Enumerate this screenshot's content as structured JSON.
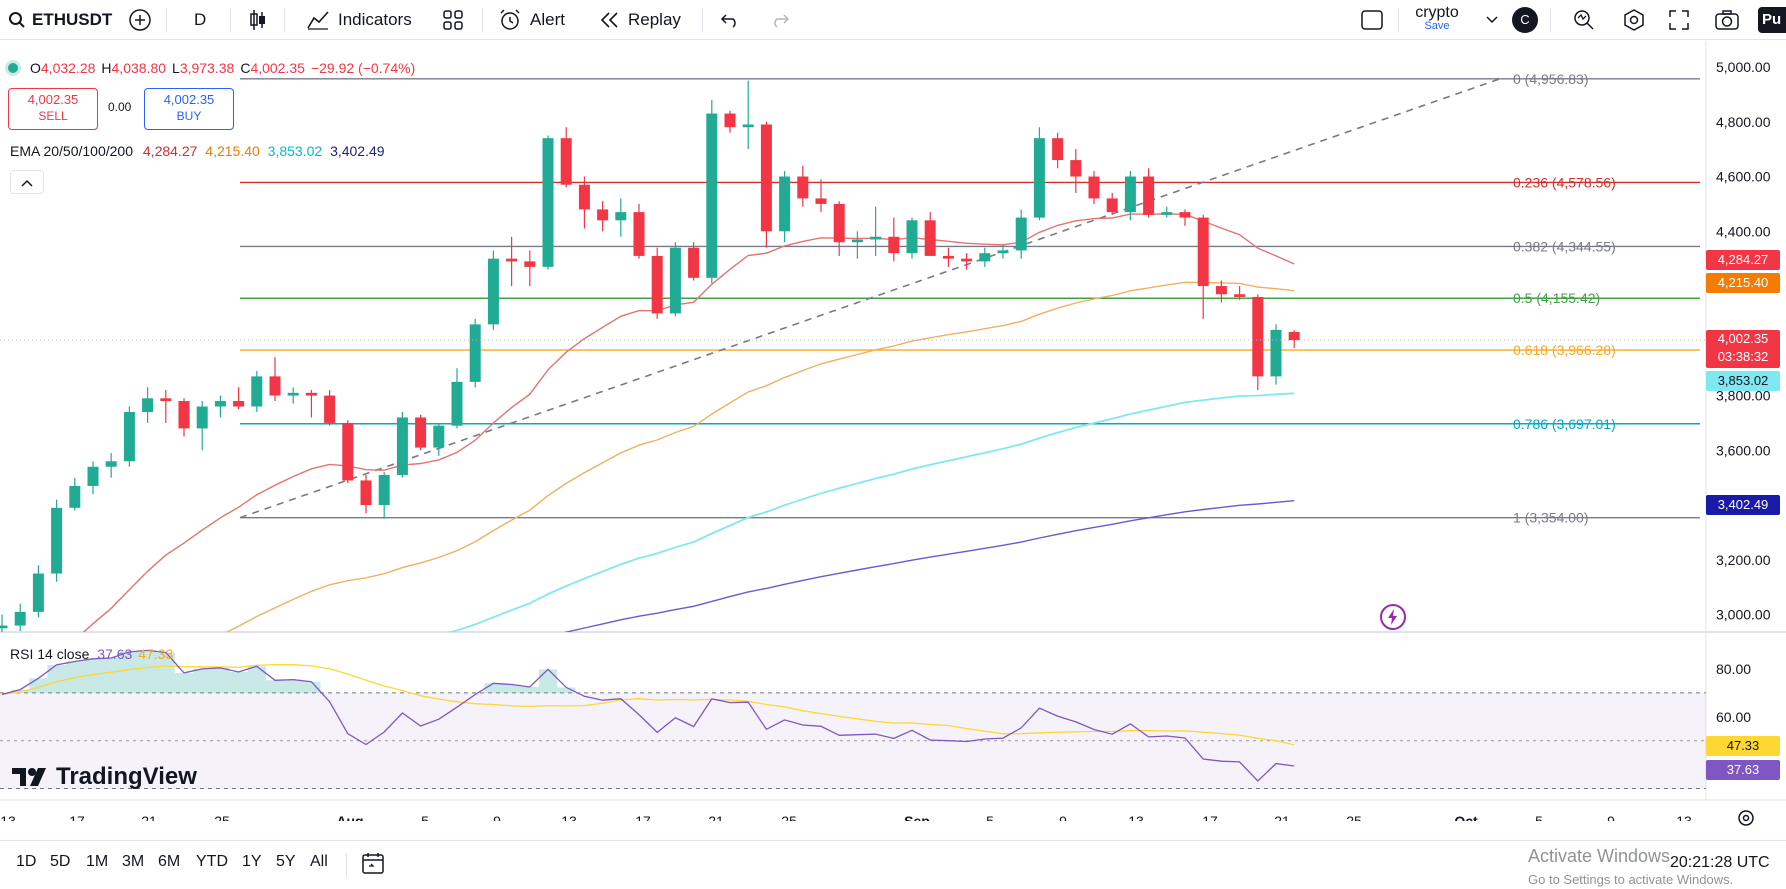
{
  "toolbar": {
    "symbol": "ETHUSDT",
    "interval": "D",
    "indicators": "Indicators",
    "alert": "Alert",
    "replay": "Replay",
    "layout_name": "crypto",
    "layout_status": "Save",
    "avatar_letter": "C",
    "publish_cut": "Pu"
  },
  "ohlc": {
    "o_label": "O",
    "o": "4,032.28",
    "h_label": "H",
    "h": "4,038.80",
    "l_label": "L",
    "l": "3,973.38",
    "c_label": "C",
    "c": "4,002.35",
    "change": "−29.92 (−0.74%)"
  },
  "trade": {
    "sell_price": "4,002.35",
    "sell_label": "SELL",
    "spread": "0.00",
    "buy_price": "4,002.35",
    "buy_label": "BUY"
  },
  "ema_legend": {
    "name": "EMA 20/50/100/200",
    "v20": "4,284.27",
    "v50": "4,215.40",
    "v100": "3,853.02",
    "v200": "3,402.49"
  },
  "rsi_legend": {
    "name": "RSI 14 close",
    "rsi": "37.63",
    "ma": "47.33"
  },
  "colors": {
    "up": "#22ab94",
    "down": "#f23645",
    "ema20": "#e57373",
    "ema50": "#f0b060",
    "ema100": "#80e8f0",
    "ema200": "#6a5acd",
    "rsi": "#7e57c2",
    "rsi_ma": "#fdd835"
  },
  "price_axis": [
    "5,000.00",
    "4,800.00",
    "4,600.00",
    "4,400.00",
    "4,200.00",
    "4,000.00",
    "3,800.00",
    "3,600.00",
    "3,400.00",
    "3,200.00",
    "3,000.00"
  ],
  "rsi_axis": [
    "80.00",
    "60.00"
  ],
  "price_tags": {
    "ema20": "4,284.27",
    "ema50": "4,215.40",
    "last": "4,002.35",
    "countdown": "03:38:32",
    "ema100": "3,853.02",
    "ema200": "3,402.49",
    "rsi_ma": "47.33",
    "rsi": "37.63"
  },
  "fib_levels": [
    {
      "label": "0 (4,956.83)",
      "price": 4956.83,
      "color": "#787b86"
    },
    {
      "label": "0.236 (4,578.56)",
      "price": 4578.56,
      "color": "#d32f2f"
    },
    {
      "label": "0.382 (4,344.55)",
      "price": 4344.55,
      "color": "#787b86"
    },
    {
      "label": "0.5 (4,155.42)",
      "price": 4155.42,
      "color": "#43a047"
    },
    {
      "label": "0.618 (3,966.28)",
      "price": 3966.28,
      "color": "#f9a825"
    },
    {
      "label": "0.786 (3,697.01)",
      "price": 3697.01,
      "color": "#00acc1"
    },
    {
      "label": "1 (3,354.00)",
      "price": 3354.0,
      "color": "#787b86"
    }
  ],
  "time_axis": [
    "13",
    "17",
    "21",
    "25",
    "Aug",
    "5",
    "9",
    "13",
    "17",
    "21",
    "25",
    "Sep",
    "5",
    "9",
    "13",
    "17",
    "21",
    "25",
    "Oct",
    "5",
    "9",
    "13"
  ],
  "timeframes": [
    "1D",
    "5D",
    "1M",
    "3M",
    "6M",
    "YTD",
    "1Y",
    "5Y",
    "All"
  ],
  "clock": "20:21:28 UTC",
  "brand": "TradingView",
  "activate": {
    "title": "Activate Windows",
    "subtitle": "Go to Settings to activate Windows."
  },
  "chart_data": {
    "type": "candlestick",
    "symbol": "ETHUSDT",
    "interval": "1D",
    "note_x": "candles are daily, from ~Jul 12 to Sep 26",
    "candles": [
      [
        2950,
        3000,
        2900,
        2960
      ],
      [
        2960,
        3040,
        2940,
        3010
      ],
      [
        3010,
        3180,
        2990,
        3150
      ],
      [
        3150,
        3420,
        3120,
        3390
      ],
      [
        3390,
        3500,
        3380,
        3470
      ],
      [
        3470,
        3560,
        3440,
        3540
      ],
      [
        3540,
        3590,
        3500,
        3560
      ],
      [
        3560,
        3760,
        3540,
        3740
      ],
      [
        3740,
        3830,
        3700,
        3790
      ],
      [
        3790,
        3820,
        3700,
        3780
      ],
      [
        3780,
        3790,
        3650,
        3680
      ],
      [
        3680,
        3780,
        3600,
        3760
      ],
      [
        3760,
        3800,
        3720,
        3780
      ],
      [
        3780,
        3830,
        3750,
        3760
      ],
      [
        3760,
        3890,
        3740,
        3870
      ],
      [
        3870,
        3940,
        3780,
        3800
      ],
      [
        3800,
        3830,
        3770,
        3810
      ],
      [
        3810,
        3820,
        3720,
        3800
      ],
      [
        3800,
        3820,
        3690,
        3700
      ],
      [
        3700,
        3710,
        3480,
        3490
      ],
      [
        3490,
        3510,
        3370,
        3400
      ],
      [
        3400,
        3520,
        3350,
        3510
      ],
      [
        3510,
        3740,
        3500,
        3720
      ],
      [
        3720,
        3730,
        3600,
        3610
      ],
      [
        3610,
        3700,
        3580,
        3690
      ],
      [
        3690,
        3900,
        3680,
        3850
      ],
      [
        3850,
        4080,
        3830,
        4060
      ],
      [
        4060,
        4330,
        4040,
        4300
      ],
      [
        4300,
        4380,
        4200,
        4290
      ],
      [
        4290,
        4330,
        4200,
        4270
      ],
      [
        4270,
        4750,
        4260,
        4740
      ],
      [
        4740,
        4780,
        4560,
        4570
      ],
      [
        4570,
        4600,
        4410,
        4480
      ],
      [
        4480,
        4510,
        4400,
        4440
      ],
      [
        4440,
        4520,
        4380,
        4470
      ],
      [
        4470,
        4500,
        4300,
        4310
      ],
      [
        4310,
        4340,
        4080,
        4100
      ],
      [
        4100,
        4360,
        4090,
        4340
      ],
      [
        4340,
        4360,
        4220,
        4230
      ],
      [
        4230,
        4880,
        4210,
        4830
      ],
      [
        4830,
        4840,
        4760,
        4780
      ],
      [
        4780,
        4950,
        4700,
        4790
      ],
      [
        4790,
        4800,
        4340,
        4400
      ],
      [
        4400,
        4620,
        4360,
        4600
      ],
      [
        4600,
        4640,
        4490,
        4520
      ],
      [
        4520,
        4590,
        4470,
        4500
      ],
      [
        4500,
        4510,
        4310,
        4360
      ],
      [
        4360,
        4400,
        4300,
        4370
      ],
      [
        4370,
        4490,
        4310,
        4380
      ],
      [
        4380,
        4450,
        4290,
        4320
      ],
      [
        4320,
        4450,
        4300,
        4440
      ],
      [
        4440,
        4470,
        4310,
        4310
      ],
      [
        4310,
        4340,
        4270,
        4300
      ],
      [
        4300,
        4320,
        4260,
        4290
      ],
      [
        4290,
        4340,
        4270,
        4320
      ],
      [
        4320,
        4350,
        4300,
        4330
      ],
      [
        4330,
        4480,
        4300,
        4450
      ],
      [
        4450,
        4780,
        4440,
        4740
      ],
      [
        4740,
        4760,
        4630,
        4660
      ],
      [
        4660,
        4700,
        4540,
        4600
      ],
      [
        4600,
        4620,
        4500,
        4520
      ],
      [
        4520,
        4540,
        4460,
        4470
      ],
      [
        4470,
        4620,
        4440,
        4600
      ],
      [
        4600,
        4630,
        4450,
        4460
      ],
      [
        4460,
        4490,
        4450,
        4470
      ],
      [
        4470,
        4480,
        4420,
        4450
      ],
      [
        4450,
        4460,
        4080,
        4200
      ],
      [
        4200,
        4220,
        4140,
        4170
      ],
      [
        4170,
        4200,
        4150,
        4160
      ],
      [
        4160,
        4170,
        3820,
        3870
      ],
      [
        3870,
        4060,
        3840,
        4040
      ],
      [
        4032.28,
        4038.8,
        3973.38,
        4002.35
      ]
    ],
    "fibonacci": [
      {
        "ratio": 0,
        "price": 4956.83
      },
      {
        "ratio": 0.236,
        "price": 4578.56
      },
      {
        "ratio": 0.382,
        "price": 4344.55
      },
      {
        "ratio": 0.5,
        "price": 4155.42
      },
      {
        "ratio": 0.618,
        "price": 3966.28
      },
      {
        "ratio": 0.786,
        "price": 3697.01
      },
      {
        "ratio": 1,
        "price": 3354.0
      }
    ],
    "ema": {
      "ema20": 4284.27,
      "ema50": 4215.4,
      "ema100": 3853.02,
      "ema200": 3402.49
    },
    "rsi": {
      "value": 37.63,
      "ma": 47.33
    },
    "ylim": [
      2950,
      5050
    ]
  }
}
